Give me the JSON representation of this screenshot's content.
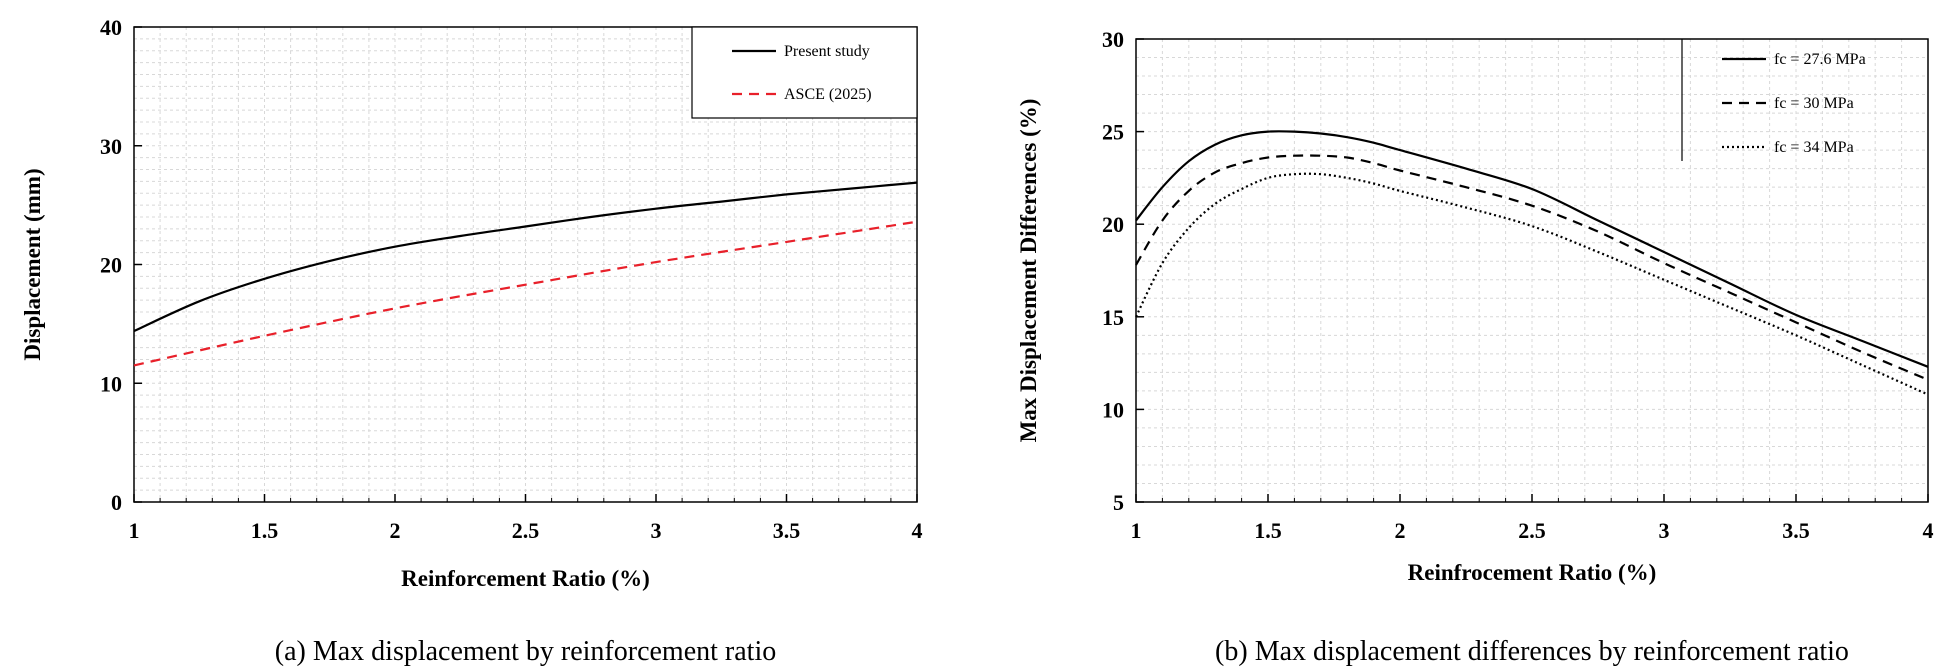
{
  "chart_data": [
    {
      "type": "line",
      "caption": "(a) Max displacement by reinforcement ratio",
      "xlabel": "Reinforcement Ratio (%)",
      "ylabel": "Displacement (mm)",
      "xlim": [
        1,
        4
      ],
      "ylim": [
        0,
        40
      ],
      "xticks": [
        "1",
        "1.5",
        "2",
        "2.5",
        "3",
        "3.5",
        "4"
      ],
      "yticks": [
        "0",
        "10",
        "20",
        "30",
        "40"
      ],
      "grid": true,
      "legend_position": "top-right",
      "series": [
        {
          "name": "Present study",
          "color": "#000000",
          "dash": "solid",
          "x": [
            1.0,
            1.25,
            1.5,
            1.75,
            2.0,
            2.25,
            2.5,
            2.75,
            3.0,
            3.25,
            3.5,
            3.75,
            4.0
          ],
          "y": [
            14.4,
            16.9,
            18.8,
            20.3,
            21.5,
            22.4,
            23.2,
            24.0,
            24.7,
            25.3,
            25.9,
            26.4,
            26.9
          ]
        },
        {
          "name": "ASCE (2025)",
          "color": "#e8202a",
          "dash": "dashed",
          "x": [
            1.0,
            1.5,
            2.0,
            2.5,
            3.0,
            3.5,
            4.0
          ],
          "y": [
            11.5,
            14.0,
            16.3,
            18.3,
            20.2,
            21.9,
            23.6
          ]
        }
      ]
    },
    {
      "type": "line",
      "caption": "(b) Max displacement differences by reinforcement ratio",
      "xlabel": "Reinfrocement Ratio (%)",
      "ylabel": "Max Displacement Differences (%)",
      "xlim": [
        1,
        4
      ],
      "ylim": [
        5,
        30
      ],
      "xticks": [
        "1",
        "1.5",
        "2",
        "2.5",
        "3",
        "3.5",
        "4"
      ],
      "yticks": [
        "5",
        "10",
        "15",
        "20",
        "25",
        "30"
      ],
      "grid": true,
      "legend_position": "top-right",
      "series": [
        {
          "name": "fc = 27.6 MPa",
          "color": "#000000",
          "dash": "solid",
          "x": [
            1.0,
            1.1,
            1.2,
            1.3,
            1.4,
            1.5,
            1.6,
            1.7,
            1.8,
            1.9,
            2.0,
            2.25,
            2.5,
            2.75,
            3.0,
            3.25,
            3.5,
            3.75,
            4.0
          ],
          "y": [
            20.2,
            22.0,
            23.4,
            24.3,
            24.8,
            25.0,
            25.0,
            24.9,
            24.7,
            24.4,
            24.0,
            23.0,
            21.9,
            20.2,
            18.5,
            16.8,
            15.1,
            13.7,
            12.3
          ]
        },
        {
          "name": "fc = 30 MPa",
          "color": "#000000",
          "dash": "dashed",
          "x": [
            1.0,
            1.1,
            1.2,
            1.3,
            1.4,
            1.5,
            1.6,
            1.7,
            1.8,
            1.9,
            2.0,
            2.25,
            2.5,
            2.75,
            3.0,
            3.25,
            3.5,
            3.75,
            4.0
          ],
          "y": [
            17.8,
            20.2,
            21.8,
            22.8,
            23.3,
            23.6,
            23.7,
            23.7,
            23.6,
            23.3,
            22.9,
            22.0,
            21.0,
            19.6,
            17.9,
            16.3,
            14.7,
            13.1,
            11.6
          ]
        },
        {
          "name": "fc = 34 MPa",
          "color": "#000000",
          "dash": "dotted",
          "x": [
            1.0,
            1.1,
            1.2,
            1.3,
            1.4,
            1.5,
            1.6,
            1.7,
            1.8,
            1.9,
            2.0,
            2.25,
            2.5,
            2.75,
            3.0,
            3.25,
            3.5,
            3.75,
            4.0
          ],
          "y": [
            15.0,
            17.9,
            19.8,
            21.1,
            21.9,
            22.5,
            22.7,
            22.7,
            22.5,
            22.2,
            21.8,
            20.9,
            19.9,
            18.5,
            17.0,
            15.5,
            14.0,
            12.4,
            10.8
          ]
        }
      ]
    }
  ]
}
